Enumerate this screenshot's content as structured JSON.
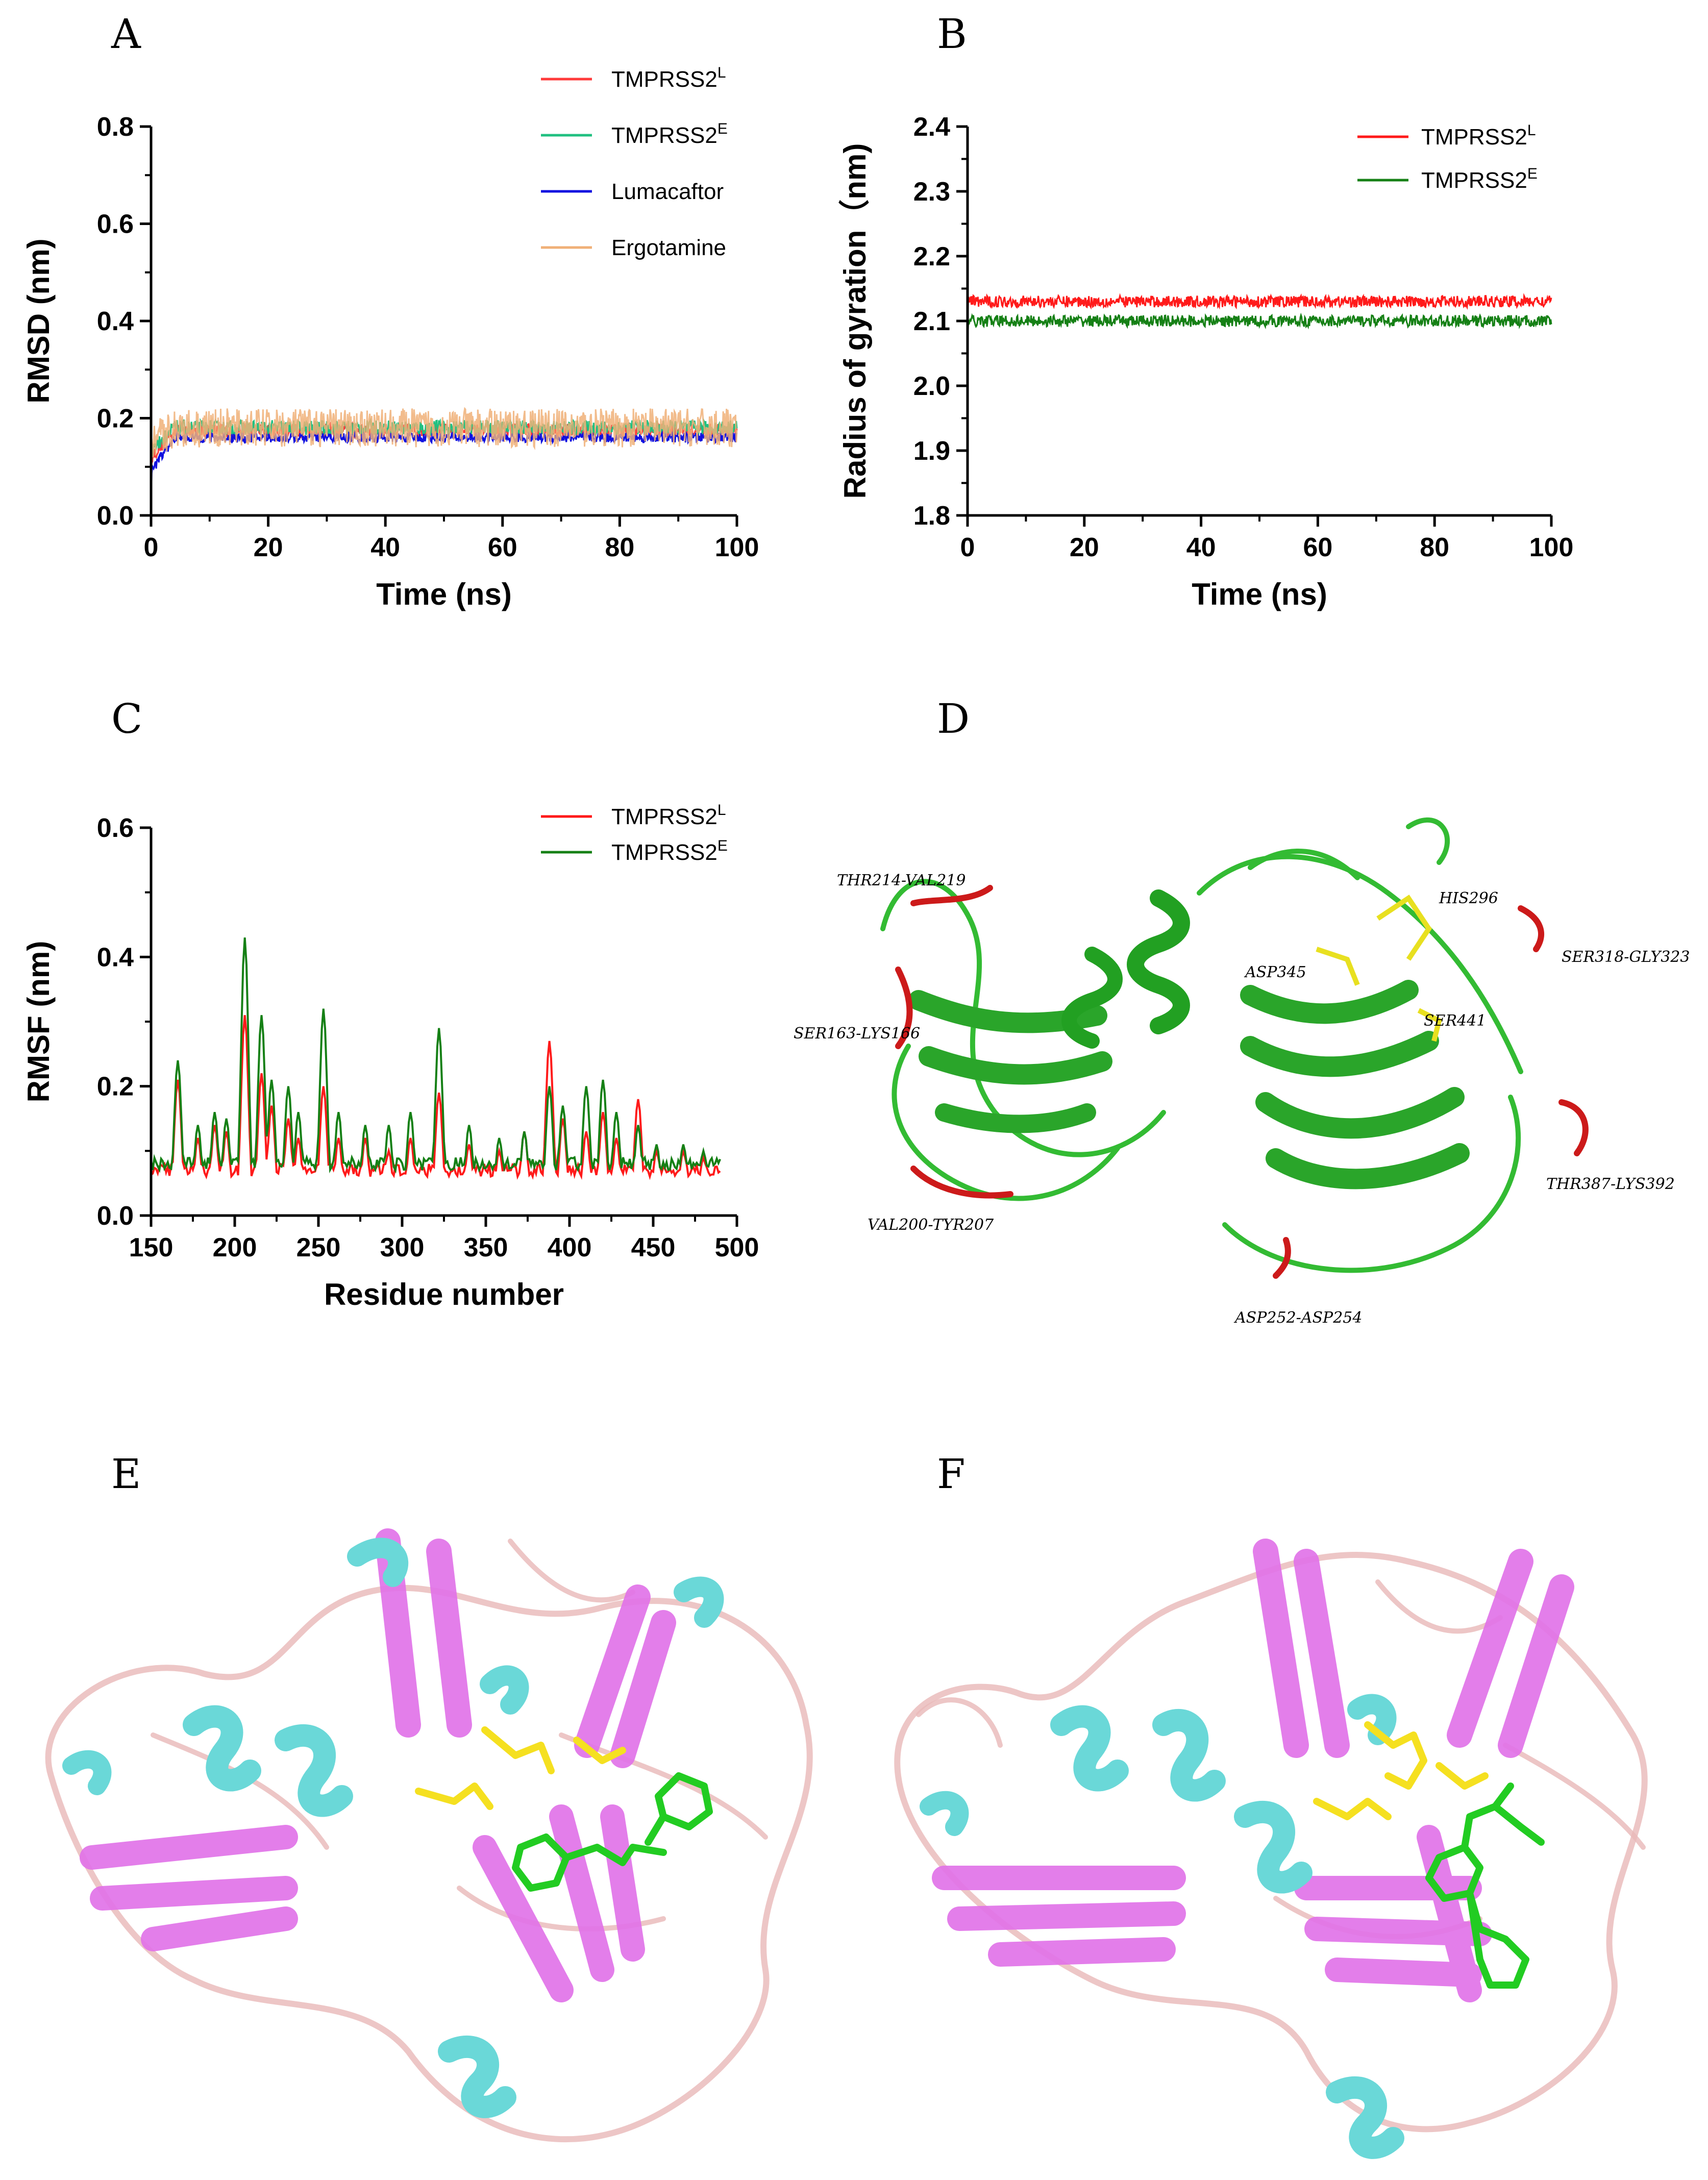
{
  "panels": {
    "A": "A",
    "B": "B",
    "C": "C",
    "D": "D",
    "E": "E",
    "F": "F"
  },
  "colors": {
    "tmprss2_l": "#ff2020",
    "tmprss2_e_a": "#20c080",
    "tmprss2_e": "#1a8a1a",
    "lumacaftor": "#1010e0",
    "ergotamine": "#f0b078"
  },
  "chart_data": [
    {
      "id": "A",
      "type": "line",
      "xlabel": "Time (ns)",
      "ylabel": "RMSD (nm)",
      "xlim": [
        0,
        100
      ],
      "ylim": [
        0,
        0.8
      ],
      "xticks": [
        "0",
        "20",
        "40",
        "60",
        "80",
        "100"
      ],
      "yticks": [
        "0.0",
        "0.2",
        "0.4",
        "0.6",
        "0.8"
      ],
      "series": [
        {
          "name": "TMPRSS2",
          "sup": "L",
          "color": "#ff3a3a",
          "mean": 0.175,
          "noise": 0.014,
          "start": 0.12
        },
        {
          "name": "TMPRSS2",
          "sup": "E",
          "color": "#20c080",
          "mean": 0.18,
          "noise": 0.016,
          "start": 0.13
        },
        {
          "name": "Lumacaftor",
          "sup": "",
          "color": "#1010e0",
          "mean": 0.16,
          "noise": 0.01,
          "start": 0.09
        },
        {
          "name": "Ergotamine",
          "sup": "",
          "color": "#f0b078",
          "mean": 0.18,
          "noise": 0.04,
          "start": 0.15
        }
      ]
    },
    {
      "id": "B",
      "type": "line",
      "xlabel": "Time (ns)",
      "ylabel": "Radius of gyration（nm)",
      "xlim": [
        0,
        100
      ],
      "ylim": [
        1.8,
        2.4
      ],
      "xticks": [
        "0",
        "20",
        "40",
        "60",
        "80",
        "100"
      ],
      "yticks": [
        "1.8",
        "1.9",
        "2.0",
        "2.1",
        "2.2",
        "2.3",
        "2.4"
      ],
      "series": [
        {
          "name": "TMPRSS2",
          "sup": "L",
          "color": "#ff1a1a",
          "mean": 2.13,
          "noise": 0.009
        },
        {
          "name": "TMPRSS2",
          "sup": "E",
          "color": "#158015",
          "mean": 2.1,
          "noise": 0.009
        }
      ]
    },
    {
      "id": "C",
      "type": "line",
      "xlabel": "Residue number",
      "ylabel": "RMSF (nm)",
      "xlim": [
        150,
        500
      ],
      "ylim": [
        0,
        0.6
      ],
      "xticks": [
        "150",
        "200",
        "250",
        "300",
        "350",
        "400",
        "450",
        "500"
      ],
      "yticks": [
        "0.0",
        "0.2",
        "0.4",
        "0.6"
      ],
      "peaks": [
        {
          "x": 166,
          "l": 0.21,
          "e": 0.24
        },
        {
          "x": 178,
          "l": 0.12,
          "e": 0.14
        },
        {
          "x": 188,
          "l": 0.14,
          "e": 0.16
        },
        {
          "x": 195,
          "l": 0.13,
          "e": 0.15
        },
        {
          "x": 206,
          "l": 0.31,
          "e": 0.43
        },
        {
          "x": 216,
          "l": 0.22,
          "e": 0.31
        },
        {
          "x": 222,
          "l": 0.17,
          "e": 0.21
        },
        {
          "x": 232,
          "l": 0.15,
          "e": 0.2
        },
        {
          "x": 238,
          "l": 0.12,
          "e": 0.16
        },
        {
          "x": 253,
          "l": 0.2,
          "e": 0.32
        },
        {
          "x": 262,
          "l": 0.12,
          "e": 0.16
        },
        {
          "x": 278,
          "l": 0.12,
          "e": 0.14
        },
        {
          "x": 292,
          "l": 0.1,
          "e": 0.14
        },
        {
          "x": 305,
          "l": 0.12,
          "e": 0.16
        },
        {
          "x": 322,
          "l": 0.19,
          "e": 0.29
        },
        {
          "x": 340,
          "l": 0.11,
          "e": 0.14
        },
        {
          "x": 358,
          "l": 0.1,
          "e": 0.12
        },
        {
          "x": 373,
          "l": 0.13,
          "e": 0.13
        },
        {
          "x": 388,
          "l": 0.27,
          "e": 0.2
        },
        {
          "x": 396,
          "l": 0.15,
          "e": 0.17
        },
        {
          "x": 410,
          "l": 0.13,
          "e": 0.2
        },
        {
          "x": 420,
          "l": 0.16,
          "e": 0.21
        },
        {
          "x": 428,
          "l": 0.12,
          "e": 0.16
        },
        {
          "x": 441,
          "l": 0.18,
          "e": 0.14
        },
        {
          "x": 452,
          "l": 0.1,
          "e": 0.11
        },
        {
          "x": 468,
          "l": 0.1,
          "e": 0.11
        },
        {
          "x": 480,
          "l": 0.09,
          "e": 0.1
        }
      ],
      "series": [
        {
          "name": "TMPRSS2",
          "sup": "L",
          "color": "#ff1a1a"
        },
        {
          "name": "TMPRSS2",
          "sup": "E",
          "color": "#158015"
        }
      ]
    }
  ],
  "structure_d": {
    "annotations": [
      "THR214-VAL219",
      "HIS296",
      "ASP345",
      "SER318-GLY323",
      "SER163-LYS166",
      "SER441",
      "THR387-LYS392",
      "VAL200-TYR207",
      "ASP252-ASP254"
    ]
  }
}
